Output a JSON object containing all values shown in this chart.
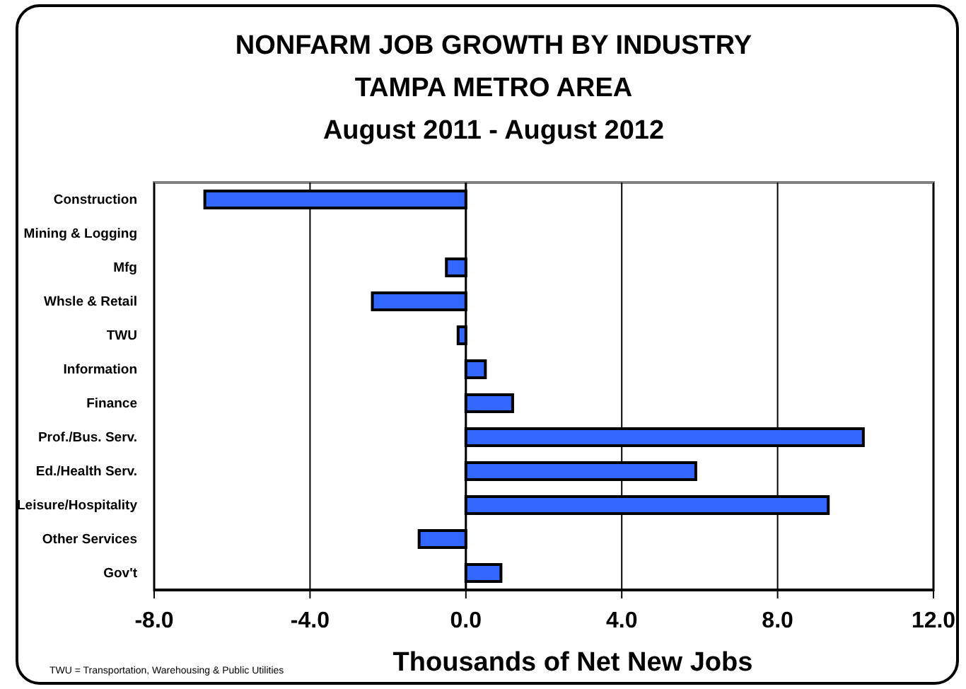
{
  "chart_data": {
    "type": "bar",
    "orientation": "horizontal",
    "title": "NONFARM JOB GROWTH BY INDUSTRY\nTAMPA METRO AREA\nAugust 2011 - August 2012",
    "xlabel": "Thousands of Net New Jobs",
    "categories": [
      "Construction",
      "Mining & Logging",
      "Mfg",
      "Whsle & Retail",
      "TWU",
      "Information",
      "Finance",
      "Prof./Bus. Serv.",
      "Ed./Health Serv.",
      "Leisure/Hospitality",
      "Other Services",
      "Gov't"
    ],
    "values": [
      -6.7,
      0,
      -0.5,
      -2.4,
      -0.2,
      0.5,
      1.2,
      10.2,
      5.9,
      9.3,
      -1.2,
      0.9
    ],
    "color": "#3366ff",
    "xlim": [
      -8,
      12
    ],
    "xticks": [
      {
        "value": -8,
        "label": "-8.0"
      },
      {
        "value": -4,
        "label": "-4.0"
      },
      {
        "value": 0,
        "label": "0.0"
      },
      {
        "value": 4,
        "label": "4.0"
      },
      {
        "value": 8,
        "label": "8.0"
      },
      {
        "value": 12,
        "label": "12.0"
      }
    ],
    "grid": "x",
    "annotations": [
      "TWU = Transportation, Warehousing & Public Utilities"
    ]
  }
}
